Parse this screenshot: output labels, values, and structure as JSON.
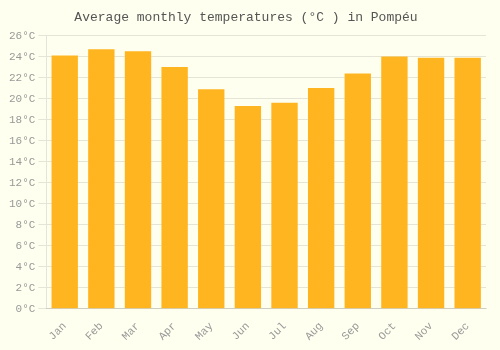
{
  "chart_data": {
    "type": "bar",
    "title": "Average monthly temperatures (°C ) in Pompéu",
    "categories": [
      "Jan",
      "Feb",
      "Mar",
      "Apr",
      "May",
      "Jun",
      "Jul",
      "Aug",
      "Sep",
      "Oct",
      "Nov",
      "Dec"
    ],
    "values": [
      24.1,
      24.7,
      24.5,
      23.0,
      20.9,
      19.3,
      19.6,
      21.0,
      22.4,
      24.0,
      23.9,
      23.9
    ],
    "color": "#FFB520",
    "ylim": [
      0,
      26
    ],
    "yticks": [
      {
        "value": 0,
        "label": "0°C"
      },
      {
        "value": 2,
        "label": "2°C"
      },
      {
        "value": 4,
        "label": "4°C"
      },
      {
        "value": 6,
        "label": "6°C"
      },
      {
        "value": 8,
        "label": "8°C"
      },
      {
        "value": 10,
        "label": "10°C"
      },
      {
        "value": 12,
        "label": "12°C"
      },
      {
        "value": 14,
        "label": "14°C"
      },
      {
        "value": 16,
        "label": "16°C"
      },
      {
        "value": 18,
        "label": "18°C"
      },
      {
        "value": 20,
        "label": "20°C"
      },
      {
        "value": 22,
        "label": "22°C"
      },
      {
        "value": 24,
        "label": "24°C"
      },
      {
        "value": 26,
        "label": "26°C"
      }
    ],
    "grid": true
  }
}
